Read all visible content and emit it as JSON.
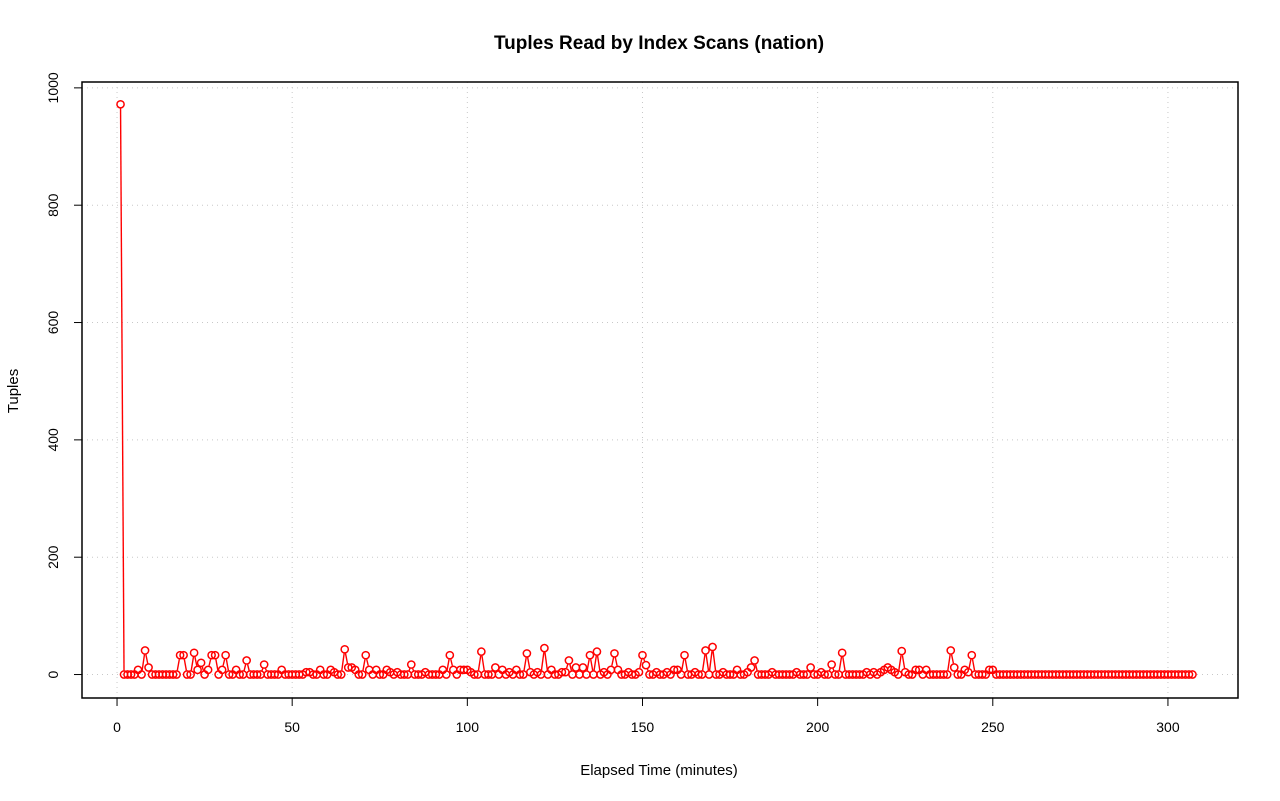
{
  "chart_data": {
    "type": "line",
    "title": "Tuples Read by Index Scans (nation)",
    "xlabel": "Elapsed Time (minutes)",
    "ylabel": "Tuples",
    "xlim": [
      -10,
      320
    ],
    "ylim": [
      -40,
      1010
    ],
    "x_ticks": [
      0,
      50,
      100,
      150,
      200,
      250,
      300
    ],
    "y_ticks": [
      0,
      200,
      400,
      600,
      800,
      1000
    ],
    "grid": true,
    "line_style": "overplotted points and lines; line segments hidden behind markers",
    "series": [
      {
        "color": "#ff0000",
        "x_start": 1,
        "x_step": 1,
        "values": [
          972,
          0,
          0,
          0,
          0,
          8,
          0,
          41,
          12,
          0,
          0,
          0,
          0,
          0,
          0,
          0,
          0,
          33,
          33,
          0,
          0,
          37,
          8,
          20,
          0,
          8,
          33,
          33,
          0,
          8,
          33,
          0,
          0,
          8,
          0,
          0,
          24,
          0,
          0,
          0,
          0,
          17,
          0,
          0,
          0,
          0,
          8,
          0,
          0,
          0,
          0,
          0,
          0,
          4,
          4,
          0,
          0,
          8,
          0,
          0,
          8,
          4,
          0,
          0,
          43,
          12,
          12,
          8,
          0,
          0,
          33,
          8,
          0,
          8,
          0,
          0,
          8,
          4,
          0,
          4,
          0,
          0,
          0,
          17,
          0,
          0,
          0,
          4,
          0,
          0,
          0,
          0,
          8,
          0,
          33,
          8,
          0,
          8,
          8,
          8,
          4,
          0,
          0,
          39,
          0,
          0,
          0,
          12,
          0,
          8,
          0,
          4,
          0,
          8,
          0,
          0,
          36,
          4,
          0,
          4,
          0,
          45,
          0,
          8,
          0,
          0,
          4,
          4,
          24,
          0,
          12,
          0,
          12,
          0,
          33,
          0,
          39,
          0,
          4,
          0,
          8,
          36,
          8,
          0,
          0,
          4,
          0,
          0,
          4,
          33,
          16,
          0,
          0,
          4,
          0,
          0,
          4,
          0,
          8,
          8,
          0,
          33,
          0,
          0,
          4,
          0,
          0,
          41,
          0,
          47,
          0,
          0,
          4,
          0,
          0,
          0,
          8,
          0,
          0,
          4,
          12,
          24,
          0,
          0,
          0,
          0,
          4,
          0,
          0,
          0,
          0,
          0,
          0,
          4,
          0,
          0,
          0,
          12,
          0,
          0,
          4,
          0,
          0,
          17,
          0,
          0,
          37,
          0,
          0,
          0,
          0,
          0,
          0,
          4,
          0,
          4,
          0,
          4,
          8,
          12,
          8,
          4,
          0,
          40,
          4,
          0,
          0,
          8,
          8,
          0,
          8,
          0,
          0,
          0,
          0,
          0,
          0,
          41,
          12,
          0,
          0,
          8,
          4,
          33,
          0,
          0,
          0,
          0,
          8,
          8,
          0,
          0,
          0,
          0,
          0,
          0,
          0,
          0,
          0,
          0,
          0,
          0,
          0,
          0,
          0,
          0,
          0,
          0,
          0,
          0,
          0,
          0,
          0,
          0,
          0,
          0,
          0,
          0,
          0,
          0,
          0,
          0,
          0,
          0,
          0,
          0,
          0,
          0,
          0,
          0,
          0,
          0,
          0,
          0,
          0,
          0,
          0,
          0,
          0,
          0,
          0,
          0,
          0,
          0,
          0,
          0,
          0
        ]
      }
    ]
  }
}
